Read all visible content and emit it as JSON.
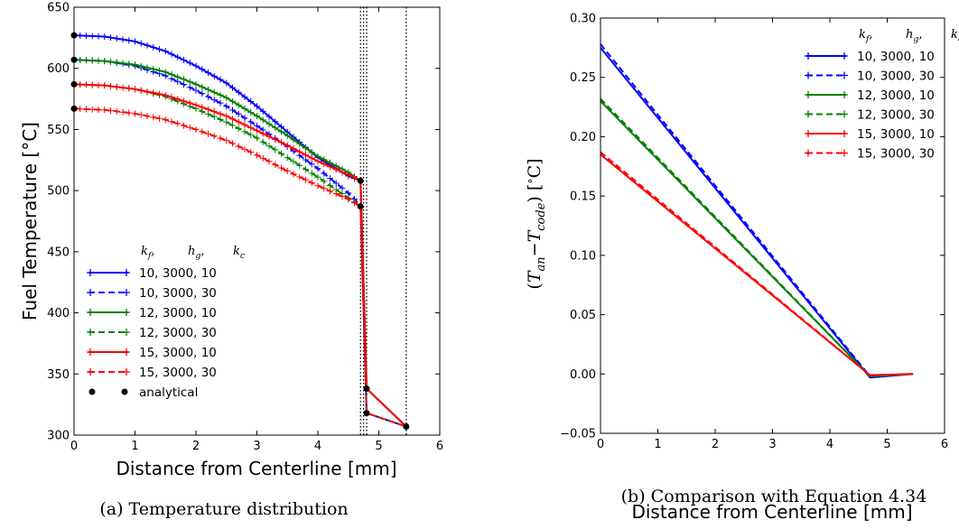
{
  "figure": {
    "captions": [
      "(a) Temperature distribution",
      "(b) Comparison with  Equation 4.34"
    ]
  },
  "chart_data": [
    {
      "type": "line",
      "xlabel": "Distance from Centerline [mm]",
      "ylabel": "Fuel Temperature [°C]",
      "xlim": [
        0,
        6
      ],
      "ylim": [
        300,
        650
      ],
      "xticks": [
        "0",
        "1",
        "2",
        "3",
        "4",
        "5",
        "6"
      ],
      "yticks": [
        "300",
        "350",
        "400",
        "450",
        "500",
        "550",
        "600",
        "650"
      ],
      "grid": false,
      "legend_title": [
        "k_f,",
        "h_g,",
        "k_c"
      ],
      "legend_position": "bottom-left",
      "vlines": [
        4.7,
        4.75,
        4.8,
        5.45
      ],
      "series": [
        {
          "name": "10, 3000, 10",
          "color": "#0000ff",
          "dash": "solid",
          "marker": "+",
          "x": [
            0,
            0.5,
            1,
            1.5,
            2,
            2.5,
            3,
            3.5,
            4,
            4.5,
            4.7,
            4.8,
            5.45
          ],
          "y": [
            627,
            626,
            622,
            614,
            602,
            588,
            569,
            548,
            527,
            512,
            508,
            338,
            307
          ]
        },
        {
          "name": "10, 3000, 30",
          "color": "#0000ff",
          "dash": "dashed",
          "marker": "+",
          "x": [
            0,
            0.5,
            1,
            1.5,
            2,
            2.5,
            3,
            3.5,
            4,
            4.5,
            4.7,
            4.8,
            5.45
          ],
          "y": [
            607,
            606,
            602,
            594,
            582,
            569,
            553,
            536,
            518,
            498,
            488,
            318,
            307
          ]
        },
        {
          "name": "12, 3000, 10",
          "color": "#008000",
          "dash": "solid",
          "marker": "+",
          "x": [
            0,
            0.5,
            1,
            1.5,
            2,
            2.5,
            3,
            3.5,
            4,
            4.5,
            4.7,
            4.8,
            5.45
          ],
          "y": [
            607,
            606,
            603,
            597,
            587,
            576,
            561,
            545,
            528,
            515,
            508,
            338,
            307
          ]
        },
        {
          "name": "12, 3000, 30",
          "color": "#008000",
          "dash": "dashed",
          "marker": "+",
          "x": [
            0,
            0.5,
            1,
            1.5,
            2,
            2.5,
            3,
            3.5,
            4,
            4.5,
            4.7,
            4.8,
            5.45
          ],
          "y": [
            587,
            586,
            583,
            577,
            567,
            556,
            543,
            527,
            511,
            494,
            487,
            318,
            307
          ]
        },
        {
          "name": "15, 3000, 10",
          "color": "#ff0000",
          "dash": "solid",
          "marker": "+",
          "x": [
            0,
            0.5,
            1,
            1.5,
            2,
            2.5,
            3,
            3.5,
            4,
            4.5,
            4.7,
            4.8,
            5.45
          ],
          "y": [
            587,
            586,
            583,
            578,
            570,
            561,
            549,
            537,
            524,
            513,
            508,
            338,
            307
          ]
        },
        {
          "name": "15, 3000, 30",
          "color": "#ff0000",
          "dash": "dashed",
          "marker": "+",
          "x": [
            0,
            0.5,
            1,
            1.5,
            2,
            2.5,
            3,
            3.5,
            4,
            4.5,
            4.7,
            4.8,
            5.45
          ],
          "y": [
            567,
            566,
            563,
            558,
            550,
            541,
            529,
            516,
            504,
            493,
            487,
            318,
            307
          ]
        },
        {
          "name": "analytical",
          "color": "#000000",
          "dash": "none",
          "marker": "o",
          "x": [
            0,
            0,
            0,
            0,
            4.7,
            4.7,
            4.8,
            4.8,
            5.45
          ],
          "y": [
            627,
            607,
            587,
            567,
            508,
            487,
            338,
            318,
            307
          ]
        }
      ]
    },
    {
      "type": "line",
      "xlabel": "Distance from Centerline [mm]",
      "ylabel": "(T_an − T_code) [°C]",
      "xlim": [
        0,
        6
      ],
      "ylim": [
        -0.05,
        0.3
      ],
      "xticks": [
        "0",
        "1",
        "2",
        "3",
        "4",
        "5",
        "6"
      ],
      "yticks": [
        "−0.05",
        "0.00",
        "0.05",
        "0.10",
        "0.15",
        "0.20",
        "0.25",
        "0.30"
      ],
      "grid": false,
      "legend_title": [
        "k_f,",
        "h_g,",
        "k_c"
      ],
      "legend_position": "top-right",
      "series": [
        {
          "name": "10, 3000, 10",
          "color": "#0000ff",
          "dash": "solid",
          "x": [
            0,
            4.7,
            5.45
          ],
          "y": [
            0.275,
            -0.003,
            0.0
          ]
        },
        {
          "name": "10, 3000, 30",
          "color": "#0000ff",
          "dash": "dashed",
          "x": [
            0,
            4.7,
            5.45
          ],
          "y": [
            0.278,
            -0.002,
            0.0
          ]
        },
        {
          "name": "12, 3000, 10",
          "color": "#008000",
          "dash": "solid",
          "x": [
            0,
            4.7,
            5.45
          ],
          "y": [
            0.23,
            -0.002,
            0.0
          ]
        },
        {
          "name": "12, 3000, 30",
          "color": "#008000",
          "dash": "dashed",
          "x": [
            0,
            4.7,
            5.45
          ],
          "y": [
            0.232,
            -0.002,
            0.0
          ]
        },
        {
          "name": "15, 3000, 10",
          "color": "#ff0000",
          "dash": "solid",
          "x": [
            0,
            4.7,
            5.45
          ],
          "y": [
            0.185,
            -0.001,
            0.0
          ]
        },
        {
          "name": "15, 3000, 30",
          "color": "#ff0000",
          "dash": "dashed",
          "x": [
            0,
            4.7,
            5.45
          ],
          "y": [
            0.187,
            -0.001,
            0.0
          ]
        }
      ]
    }
  ]
}
